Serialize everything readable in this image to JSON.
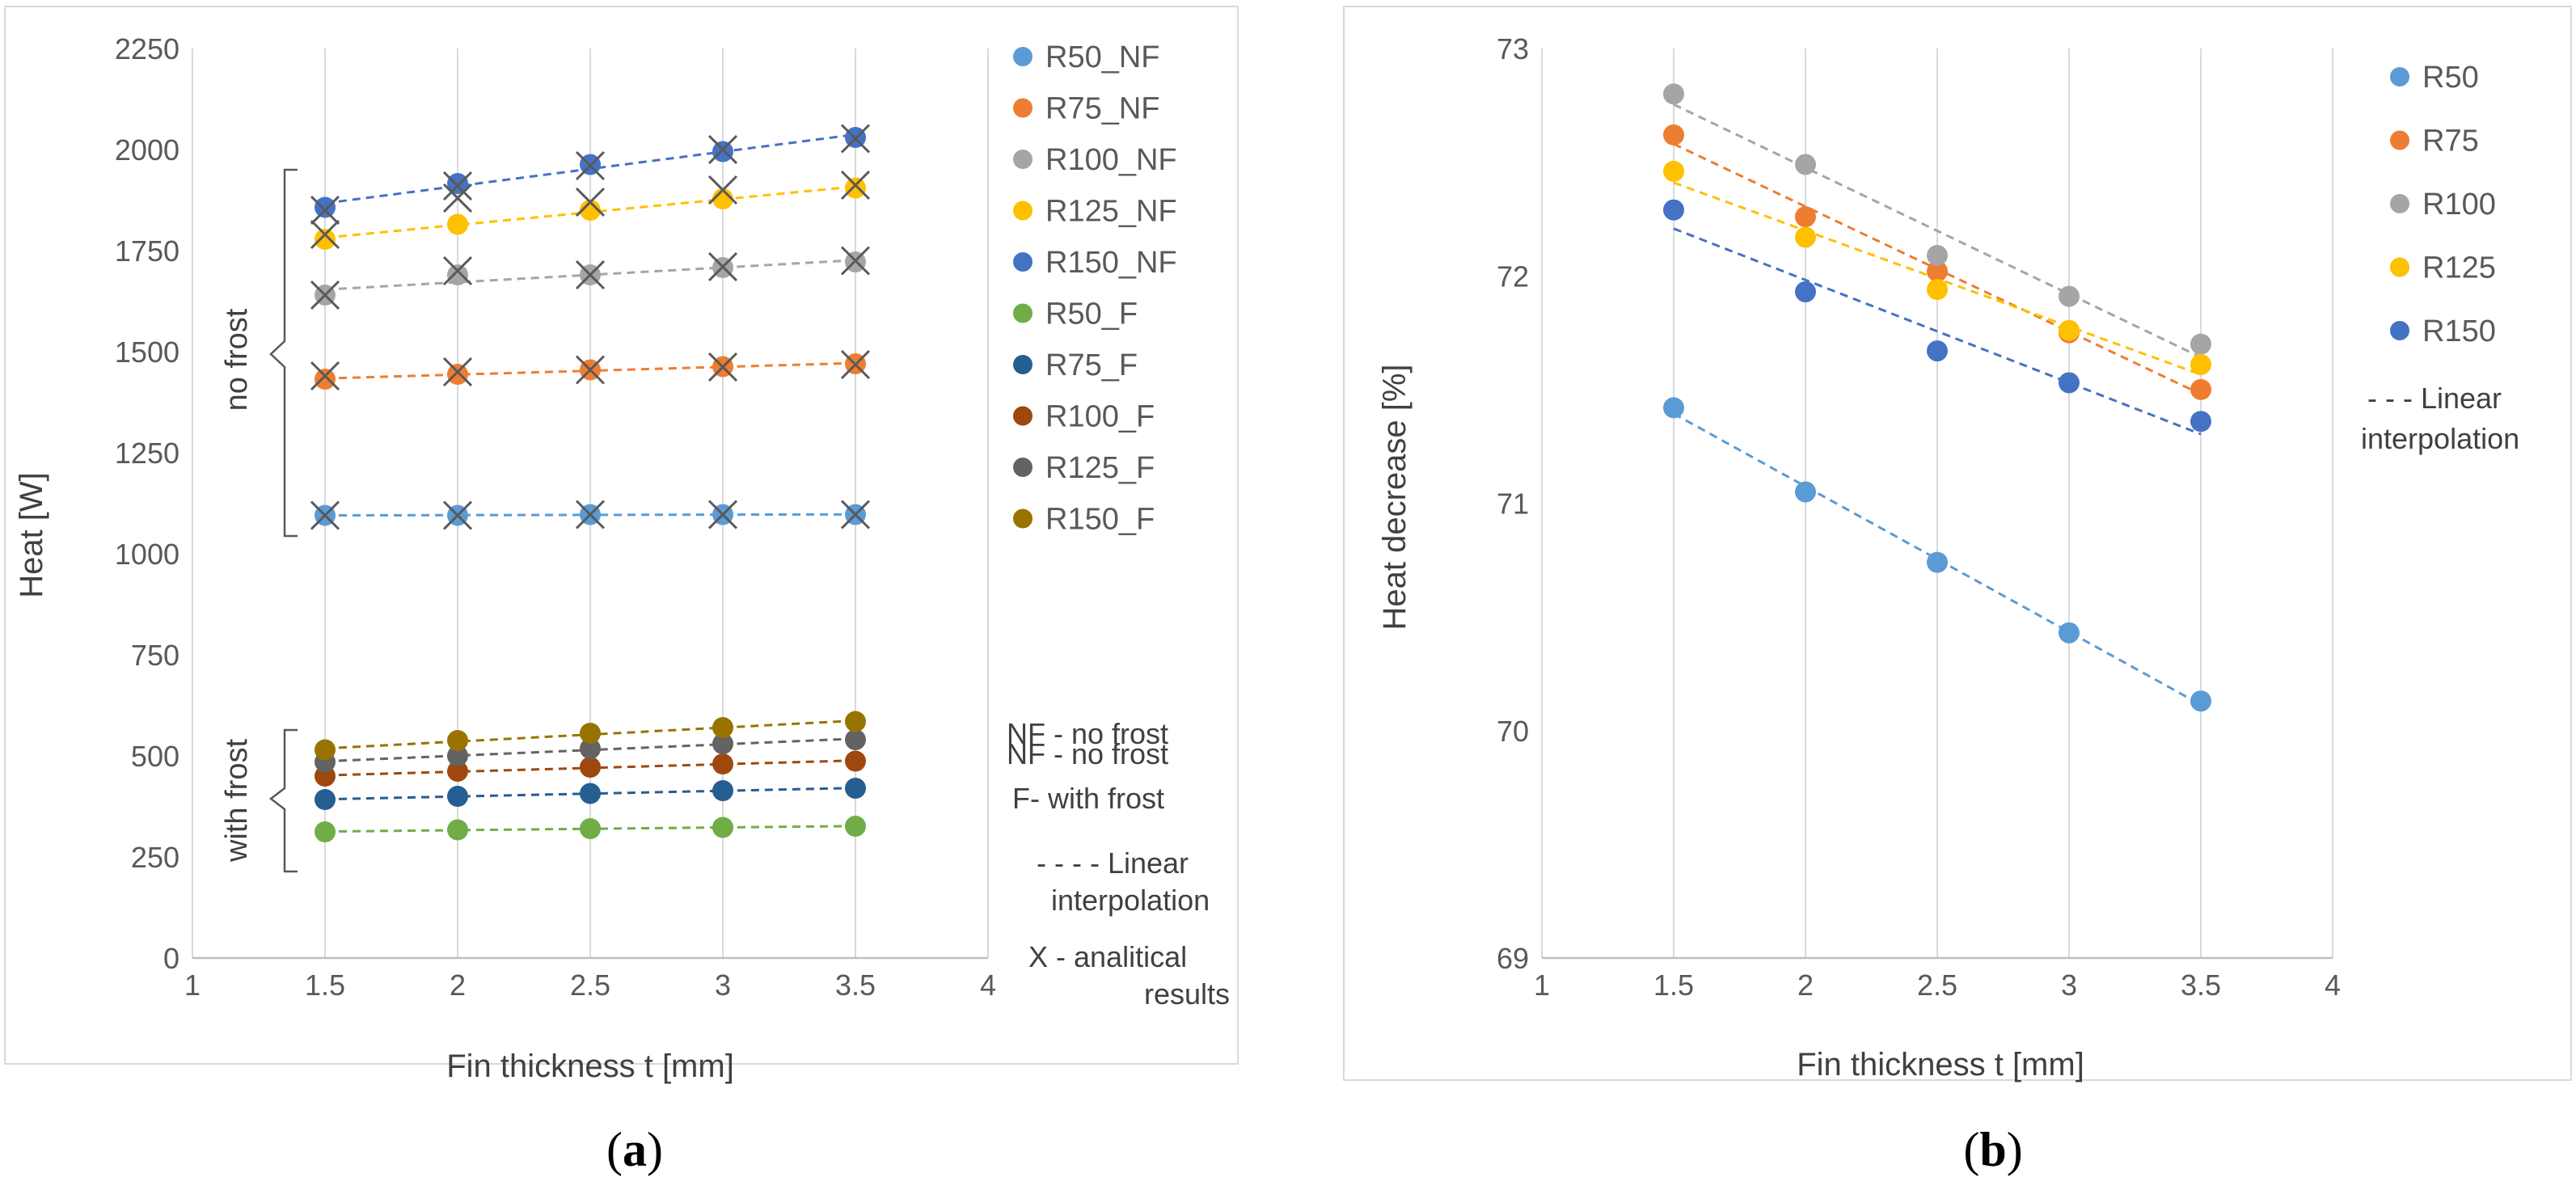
{
  "chart_data": [
    {
      "type": "scatter",
      "panel": "(a)",
      "xlabel": "Fin thickness t [mm]",
      "ylabel": "Heat [W]",
      "xlim": [
        1,
        4
      ],
      "ylim": [
        0,
        2250
      ],
      "xticks": [
        "1",
        "1.5",
        "2",
        "2.5",
        "3",
        "3.5",
        "4"
      ],
      "yticks": [
        "0",
        "250",
        "500",
        "750",
        "1000",
        "1250",
        "1500",
        "1750",
        "2000",
        "2250"
      ],
      "grid": "vertical",
      "legend_position": "right",
      "x": [
        1.5,
        2,
        2.5,
        3,
        3.5
      ],
      "series": [
        {
          "name": "R50_NF",
          "color": "#5b9bd5",
          "values": [
            1095,
            1095,
            1097,
            1097,
            1097
          ]
        },
        {
          "name": "R75_NF",
          "color": "#ed7d31",
          "values": [
            1432,
            1444,
            1455,
            1463,
            1470
          ]
        },
        {
          "name": "R100_NF",
          "color": "#a5a5a5",
          "values": [
            1640,
            1690,
            1690,
            1708,
            1722
          ]
        },
        {
          "name": "R125_NF",
          "color": "#ffc000",
          "values": [
            1778,
            1815,
            1850,
            1878,
            1905
          ]
        },
        {
          "name": "R150_NF",
          "color": "#4472c4",
          "values": [
            1857,
            1916,
            1963,
            1995,
            2030
          ]
        },
        {
          "name": "R50_F",
          "color": "#70ad47",
          "values": [
            312,
            317,
            320,
            323,
            326
          ]
        },
        {
          "name": "R75_F",
          "color": "#255e91",
          "values": [
            392,
            400,
            407,
            414,
            420
          ]
        },
        {
          "name": "R100_F",
          "color": "#9e480e",
          "values": [
            450,
            462,
            472,
            480,
            487
          ]
        },
        {
          "name": "R125_F",
          "color": "#636363",
          "values": [
            485,
            500,
            518,
            530,
            540
          ]
        },
        {
          "name": "R150_F",
          "color": "#997300",
          "values": [
            515,
            538,
            556,
            570,
            585
          ]
        }
      ],
      "analytical": {
        "R50_NF": [
          1095,
          1095,
          1097,
          1097,
          1097
        ],
        "R75_NF": [
          1440,
          1450,
          1455,
          1462,
          1468
        ],
        "R100_NF": [
          1640,
          1700,
          1690,
          1710,
          1725
        ],
        "R125_NF": [
          1790,
          1880,
          1870,
          1900,
          1912
        ],
        "R150_NF": [
          1850,
          1910,
          1960,
          2000,
          2027
        ]
      },
      "legend_notes": [
        "NF - no frost",
        "F- with frost",
        "- - - - Linear",
        "interpolation",
        "X - analitical",
        "results"
      ],
      "group_labels": {
        "no_frost": "no frost",
        "with_frost": "with  frost"
      }
    },
    {
      "type": "scatter",
      "panel": "(b)",
      "xlabel": "Fin thickness t [mm]",
      "ylabel": "Heat decrease [%]",
      "xlim": [
        1,
        4
      ],
      "ylim": [
        69,
        73
      ],
      "xticks": [
        "1",
        "1.5",
        "2",
        "2.5",
        "3",
        "3.5",
        "4"
      ],
      "yticks": [
        "69",
        "70",
        "71",
        "72",
        "73"
      ],
      "grid": "vertical",
      "legend_position": "right",
      "x": [
        1.5,
        2,
        2.5,
        3,
        3.5
      ],
      "series": [
        {
          "name": "R50",
          "color": "#5b9bd5",
          "values": [
            71.42,
            71.05,
            70.74,
            70.43,
            70.13
          ]
        },
        {
          "name": "R75",
          "color": "#ed7d31",
          "values": [
            72.62,
            72.26,
            72.02,
            71.75,
            71.5
          ]
        },
        {
          "name": "R100",
          "color": "#a5a5a5",
          "values": [
            72.8,
            72.49,
            72.09,
            71.91,
            71.7
          ]
        },
        {
          "name": "R125",
          "color": "#ffc000",
          "values": [
            72.46,
            72.17,
            71.94,
            71.76,
            71.61
          ]
        },
        {
          "name": "R150",
          "color": "#4472c4",
          "values": [
            72.29,
            71.93,
            71.67,
            71.53,
            71.36
          ]
        }
      ],
      "legend_notes": [
        "- - - Linear",
        "interpolation"
      ]
    }
  ],
  "captions": {
    "a": "(a)",
    "b": "(b)"
  }
}
